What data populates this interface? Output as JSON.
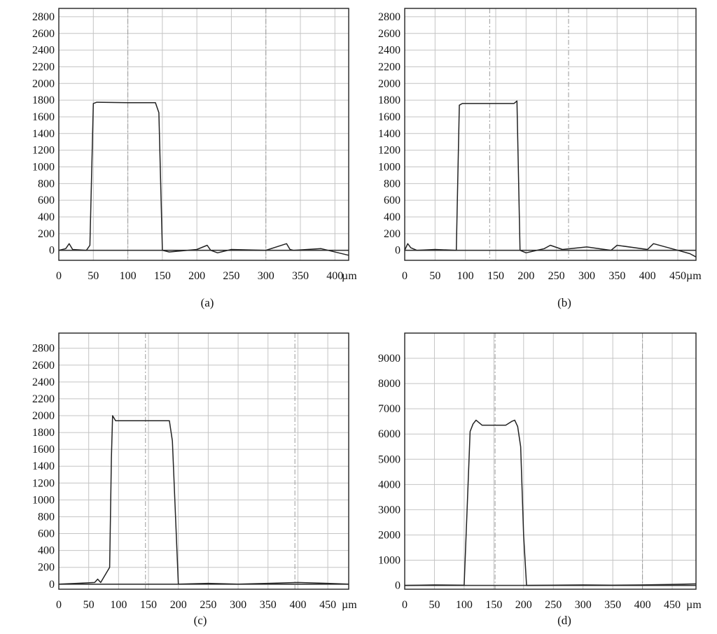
{
  "chart_data": [
    {
      "type": "line",
      "caption": "(a)",
      "x_unit": "µm",
      "xlim": [
        0,
        420
      ],
      "ylim": [
        -120,
        2900
      ],
      "x_ticks": [
        0,
        50,
        100,
        150,
        200,
        250,
        300,
        350,
        400
      ],
      "y_ticks": [
        0,
        200,
        400,
        600,
        800,
        1000,
        1200,
        1400,
        1600,
        1800,
        2000,
        2200,
        2400,
        2600,
        2800
      ],
      "dashed_x": [
        100,
        300
      ],
      "grid": true,
      "series": [
        {
          "x": [
            0,
            10,
            15,
            20,
            40,
            45,
            50,
            55,
            100,
            140,
            145,
            150,
            160,
            200,
            215,
            220,
            230,
            250,
            300,
            330,
            335,
            340,
            380,
            420
          ],
          "y": [
            0,
            20,
            80,
            10,
            0,
            60,
            1760,
            1775,
            1770,
            1770,
            1650,
            0,
            -20,
            10,
            60,
            0,
            -30,
            10,
            0,
            80,
            10,
            0,
            20,
            -60
          ]
        }
      ]
    },
    {
      "type": "line",
      "caption": "(b)",
      "x_unit": "µm",
      "xlim": [
        0,
        480
      ],
      "ylim": [
        -120,
        2900
      ],
      "x_ticks": [
        0,
        50,
        100,
        150,
        200,
        250,
        300,
        350,
        400,
        450
      ],
      "y_ticks": [
        0,
        200,
        400,
        600,
        800,
        1000,
        1200,
        1400,
        1600,
        1800,
        2000,
        2200,
        2400,
        2600,
        2800
      ],
      "dashed_x": [
        140,
        270
      ],
      "grid": true,
      "series": [
        {
          "x": [
            0,
            5,
            10,
            20,
            50,
            85,
            90,
            95,
            150,
            180,
            185,
            190,
            200,
            230,
            240,
            260,
            300,
            340,
            350,
            400,
            410,
            450,
            470,
            480
          ],
          "y": [
            0,
            80,
            30,
            0,
            10,
            0,
            1740,
            1760,
            1760,
            1760,
            1790,
            0,
            -30,
            20,
            60,
            10,
            40,
            0,
            60,
            10,
            80,
            0,
            -40,
            -80
          ]
        }
      ]
    },
    {
      "type": "line",
      "caption": "(c)",
      "x_unit": "µm",
      "xlim": [
        0,
        485
      ],
      "ylim": [
        -60,
        2980
      ],
      "x_ticks": [
        0,
        50,
        100,
        150,
        200,
        250,
        300,
        350,
        400,
        450
      ],
      "y_ticks": [
        0,
        200,
        400,
        600,
        800,
        1000,
        1200,
        1400,
        1600,
        1800,
        2000,
        2200,
        2400,
        2600,
        2800
      ],
      "y_tick_labels": [
        "0",
        "200",
        "400",
        "600",
        "800",
        "1000",
        "1200",
        "1400",
        "1600",
        "1800",
        "2000",
        "2200",
        "2400",
        "2600",
        "2800"
      ],
      "dashed_x": [
        145,
        395
      ],
      "grid": true,
      "series": [
        {
          "x": [
            0,
            30,
            60,
            65,
            70,
            85,
            88,
            90,
            95,
            150,
            185,
            190,
            200,
            250,
            300,
            350,
            400,
            450,
            485
          ],
          "y": [
            0,
            10,
            20,
            60,
            20,
            200,
            1500,
            2000,
            1940,
            1940,
            1940,
            1700,
            0,
            10,
            0,
            10,
            20,
            10,
            0
          ]
        }
      ]
    },
    {
      "type": "line",
      "caption": "(d)",
      "x_unit": "µm",
      "xlim": [
        0,
        490
      ],
      "ylim": [
        -150,
        10000
      ],
      "x_ticks": [
        0,
        50,
        100,
        150,
        200,
        250,
        300,
        350,
        400,
        450
      ],
      "y_ticks": [
        0,
        1000,
        2000,
        3000,
        4000,
        5000,
        6000,
        7000,
        8000,
        9000
      ],
      "dashed_x": [
        152,
        400
      ],
      "grid": true,
      "series": [
        {
          "x": [
            0,
            50,
            100,
            105,
            110,
            115,
            120,
            130,
            170,
            180,
            185,
            190,
            195,
            200,
            205,
            250,
            300,
            350,
            400,
            450,
            490
          ],
          "y": [
            0,
            20,
            10,
            3000,
            6100,
            6400,
            6550,
            6350,
            6350,
            6500,
            6550,
            6300,
            5500,
            2000,
            0,
            10,
            20,
            10,
            20,
            40,
            60
          ]
        }
      ]
    }
  ]
}
